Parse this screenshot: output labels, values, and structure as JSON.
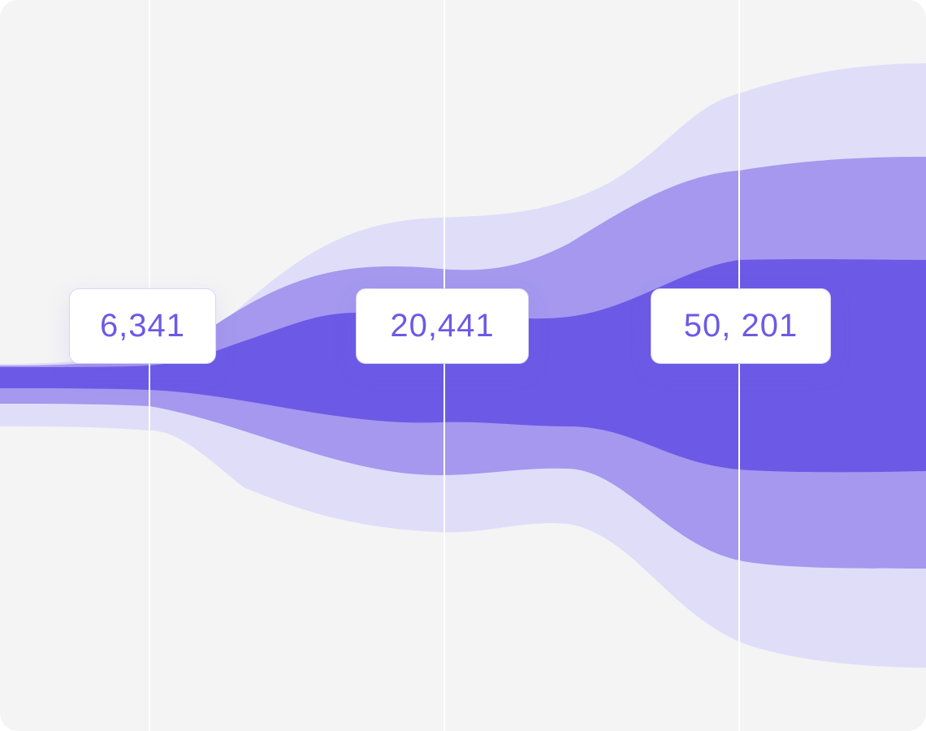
{
  "labels": [
    "6,341",
    "20,441",
    "50, 201"
  ]
}
